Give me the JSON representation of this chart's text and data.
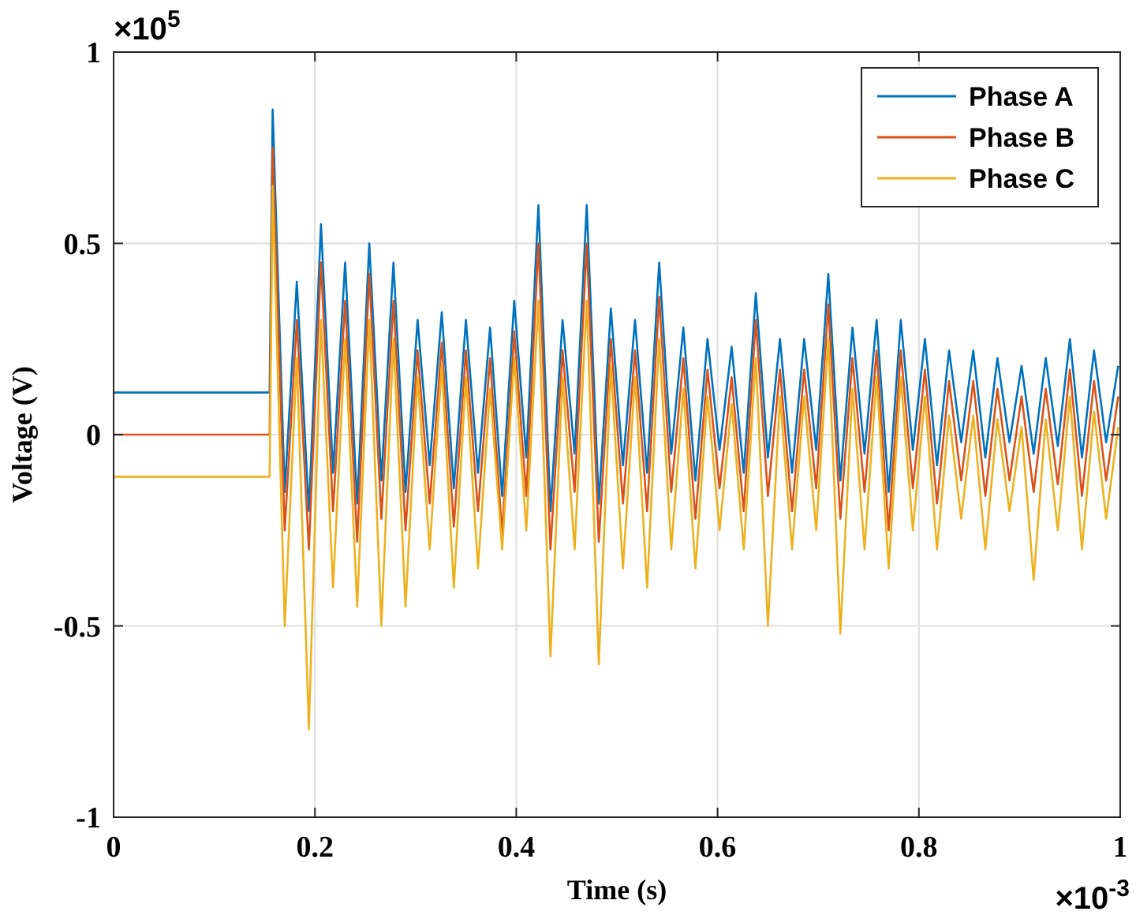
{
  "chart_data": {
    "type": "line",
    "xlabel": "Time (s)",
    "ylabel": "Voltage (V)",
    "x": [
      0,
      0.155,
      0.158,
      0.17,
      0.182,
      0.194,
      0.206,
      0.218,
      0.23,
      0.242,
      0.254,
      0.266,
      0.278,
      0.29,
      0.302,
      0.314,
      0.326,
      0.338,
      0.35,
      0.362,
      0.374,
      0.386,
      0.398,
      0.41,
      0.422,
      0.434,
      0.446,
      0.458,
      0.47,
      0.482,
      0.494,
      0.506,
      0.518,
      0.53,
      0.542,
      0.554,
      0.566,
      0.578,
      0.59,
      0.602,
      0.614,
      0.626,
      0.638,
      0.65,
      0.662,
      0.674,
      0.686,
      0.698,
      0.71,
      0.722,
      0.734,
      0.746,
      0.758,
      0.77,
      0.782,
      0.794,
      0.806,
      0.818,
      0.83,
      0.842,
      0.854,
      0.866,
      0.878,
      0.89,
      0.902,
      0.914,
      0.926,
      0.938,
      0.95,
      0.962,
      0.974,
      0.986,
      0.998
    ],
    "series": [
      {
        "name": "Phase A",
        "color": "#0072bd",
        "values": [
          0.11,
          0.11,
          0.85,
          -0.15,
          0.4,
          -0.2,
          0.55,
          -0.1,
          0.45,
          -0.18,
          0.5,
          -0.12,
          0.45,
          -0.15,
          0.3,
          -0.08,
          0.32,
          -0.14,
          0.3,
          -0.1,
          0.28,
          -0.16,
          0.35,
          -0.06,
          0.6,
          -0.2,
          0.3,
          -0.05,
          0.6,
          -0.18,
          0.33,
          -0.08,
          0.3,
          -0.1,
          0.45,
          -0.05,
          0.28,
          -0.12,
          0.25,
          -0.04,
          0.23,
          -0.1,
          0.37,
          -0.06,
          0.25,
          -0.1,
          0.25,
          -0.04,
          0.42,
          -0.12,
          0.28,
          -0.05,
          0.3,
          -0.15,
          0.3,
          -0.04,
          0.25,
          -0.08,
          0.22,
          -0.02,
          0.22,
          -0.06,
          0.2,
          -0.02,
          0.18,
          -0.05,
          0.2,
          -0.03,
          0.25,
          -0.06,
          0.22,
          -0.02,
          0.18
        ]
      },
      {
        "name": "Phase B",
        "color": "#d95319",
        "values": [
          0,
          0,
          0.75,
          -0.25,
          0.3,
          -0.3,
          0.45,
          -0.2,
          0.35,
          -0.28,
          0.42,
          -0.22,
          0.35,
          -0.25,
          0.22,
          -0.18,
          0.24,
          -0.24,
          0.22,
          -0.2,
          0.2,
          -0.26,
          0.27,
          -0.16,
          0.5,
          -0.3,
          0.22,
          -0.15,
          0.5,
          -0.28,
          0.25,
          -0.18,
          0.22,
          -0.2,
          0.36,
          -0.15,
          0.2,
          -0.22,
          0.17,
          -0.14,
          0.15,
          -0.2,
          0.3,
          -0.16,
          0.17,
          -0.2,
          0.17,
          -0.14,
          0.34,
          -0.22,
          0.2,
          -0.15,
          0.22,
          -0.25,
          0.22,
          -0.14,
          0.17,
          -0.18,
          0.14,
          -0.12,
          0.14,
          -0.16,
          0.12,
          -0.12,
          0.1,
          -0.15,
          0.12,
          -0.13,
          0.17,
          -0.16,
          0.14,
          -0.12,
          0.1
        ]
      },
      {
        "name": "Phase C",
        "color": "#edb120",
        "values": [
          -0.11,
          -0.11,
          0.65,
          -0.5,
          0.2,
          -0.77,
          0.3,
          -0.4,
          0.25,
          -0.45,
          0.3,
          -0.5,
          0.25,
          -0.45,
          0.15,
          -0.3,
          0.18,
          -0.4,
          0.15,
          -0.35,
          0.12,
          -0.3,
          0.2,
          -0.25,
          0.35,
          -0.58,
          0.15,
          -0.3,
          0.35,
          -0.6,
          0.18,
          -0.35,
          0.15,
          -0.4,
          0.25,
          -0.3,
          0.12,
          -0.35,
          0.1,
          -0.25,
          0.08,
          -0.3,
          0.2,
          -0.5,
          0.1,
          -0.3,
          0.1,
          -0.25,
          0.25,
          -0.52,
          0.12,
          -0.3,
          0.15,
          -0.35,
          0.15,
          -0.25,
          0.1,
          -0.3,
          0.05,
          -0.22,
          0.05,
          -0.3,
          0.04,
          -0.2,
          0.02,
          -0.38,
          0.04,
          -0.25,
          0.1,
          -0.3,
          0.06,
          -0.22,
          0.02
        ]
      }
    ],
    "xlim": [
      0,
      1
    ],
    "xticks": [
      0,
      0.2,
      0.4,
      0.6,
      0.8,
      1
    ],
    "ylim": [
      -1,
      1
    ],
    "yticks": [
      -1,
      -0.5,
      0,
      0.5,
      1
    ],
    "grid": true,
    "legend": "top right",
    "line_style": "solid",
    "marker": "none",
    "annotations": [
      "×10$^{5}$",
      "×10$^{-3}$"
    ]
  }
}
